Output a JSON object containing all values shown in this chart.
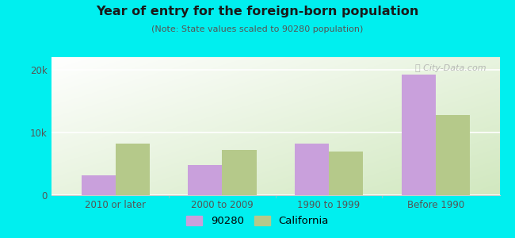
{
  "title": "Year of entry for the foreign-born population",
  "subtitle": "(Note: State values scaled to 90280 population)",
  "categories": [
    "2010 or later",
    "2000 to 2009",
    "1990 to 1999",
    "Before 1990"
  ],
  "values_90280": [
    3200,
    4800,
    8200,
    19200
  ],
  "values_california": [
    8200,
    7200,
    7000,
    12800
  ],
  "color_90280": "#c9a0dc",
  "color_california": "#b5c98a",
  "background_outer": "#00efef",
  "background_inner_top_left": "#f0f8f0",
  "background_inner_bottom_right": "#d0e8c0",
  "ylim": [
    0,
    22000
  ],
  "yticks": [
    0,
    10000,
    20000
  ],
  "ytick_labels": [
    "0",
    "10k",
    "20k"
  ],
  "bar_width": 0.32,
  "legend_label_90280": "90280",
  "legend_label_california": "California",
  "watermark": "ⓘ City-Data.com"
}
